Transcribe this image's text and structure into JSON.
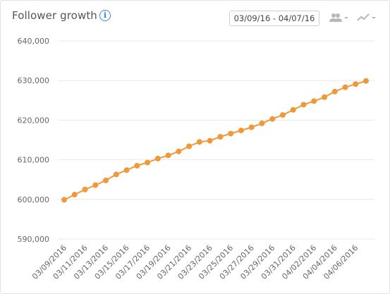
{
  "header": {
    "title": "Follower growth",
    "date_range": "03/09/16 - 04/07/16"
  },
  "colors": {
    "line": "#f0993a",
    "grid": "#e8e8e8",
    "info": "#3a8bd6"
  },
  "icons": {
    "info": "info-icon",
    "audience": "people-icon",
    "chart_type": "trend-line-icon"
  },
  "chart_data": {
    "type": "line",
    "ylim": [
      590000,
      640000
    ],
    "yticks": [
      590000,
      600000,
      610000,
      620000,
      630000,
      640000
    ],
    "ytick_labels": [
      "590,000",
      "600,000",
      "610,000",
      "620,000",
      "630,000",
      "640,000"
    ],
    "xtick_labels": [
      "03/09/2016",
      "03/11/2016",
      "03/13/2016",
      "03/15/2016",
      "03/17/2016",
      "03/19/2016",
      "03/21/2016",
      "03/23/2016",
      "03/25/2016",
      "03/27/2016",
      "03/29/2016",
      "03/31/2016",
      "04/02/2016",
      "04/04/2016",
      "04/06/2016"
    ],
    "x": [
      "03/09/2016",
      "03/10/2016",
      "03/11/2016",
      "03/12/2016",
      "03/13/2016",
      "03/14/2016",
      "03/15/2016",
      "03/16/2016",
      "03/17/2016",
      "03/18/2016",
      "03/19/2016",
      "03/20/2016",
      "03/21/2016",
      "03/22/2016",
      "03/23/2016",
      "03/24/2016",
      "03/25/2016",
      "03/26/2016",
      "03/27/2016",
      "03/28/2016",
      "03/29/2016",
      "03/30/2016",
      "03/31/2016",
      "04/01/2016",
      "04/02/2016",
      "04/03/2016",
      "04/04/2016",
      "04/05/2016",
      "04/06/2016",
      "04/07/2016"
    ],
    "values": [
      599900,
      601200,
      602500,
      603600,
      604800,
      606300,
      607400,
      608500,
      609300,
      610300,
      611100,
      612100,
      613400,
      614500,
      614800,
      615800,
      616600,
      617400,
      618200,
      619200,
      620300,
      621300,
      622600,
      623900,
      624800,
      625800,
      627200,
      628300,
      629100,
      629900
    ],
    "grid": true,
    "legend": "none"
  }
}
